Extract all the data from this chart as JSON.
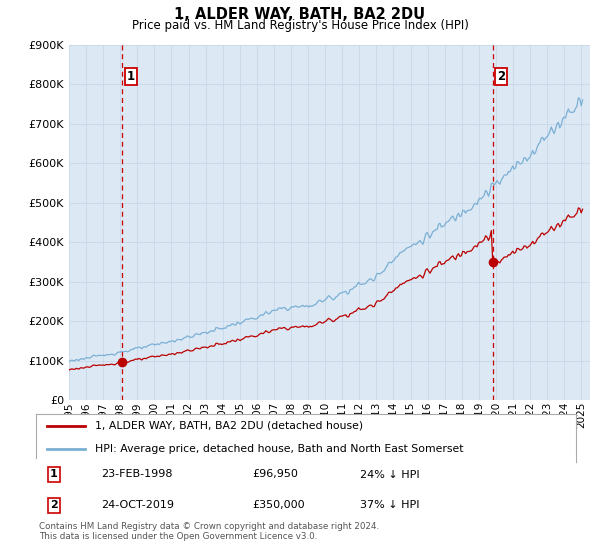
{
  "title": "1, ALDER WAY, BATH, BA2 2DU",
  "subtitle": "Price paid vs. HM Land Registry's House Price Index (HPI)",
  "ylim": [
    0,
    900000
  ],
  "yticks": [
    0,
    100000,
    200000,
    300000,
    400000,
    500000,
    600000,
    700000,
    800000,
    900000
  ],
  "ytick_labels": [
    "£0",
    "£100K",
    "£200K",
    "£300K",
    "£400K",
    "£500K",
    "£600K",
    "£700K",
    "£800K",
    "£900K"
  ],
  "xlim_start": 1995.0,
  "xlim_end": 2025.5,
  "hpi_color": "#7bafd4",
  "property_color": "#bb0000",
  "vline_color": "#cc0000",
  "plot_bg_color": "#dce9f5",
  "purchase1_x": 1998.13,
  "purchase1_y": 96950,
  "purchase1_label": "1",
  "purchase2_x": 2019.81,
  "purchase2_y": 350000,
  "purchase2_label": "2",
  "legend1": "1, ALDER WAY, BATH, BA2 2DU (detached house)",
  "legend2": "HPI: Average price, detached house, Bath and North East Somerset",
  "table_row1_num": "1",
  "table_row1_date": "23-FEB-1998",
  "table_row1_price": "£96,950",
  "table_row1_hpi": "24% ↓ HPI",
  "table_row2_num": "2",
  "table_row2_date": "24-OCT-2019",
  "table_row2_price": "£350,000",
  "table_row2_hpi": "37% ↓ HPI",
  "footnote": "Contains HM Land Registry data © Crown copyright and database right 2024.\nThis data is licensed under the Open Government Licence v3.0.",
  "background_color": "#ffffff",
  "grid_color": "#c8d8e8"
}
